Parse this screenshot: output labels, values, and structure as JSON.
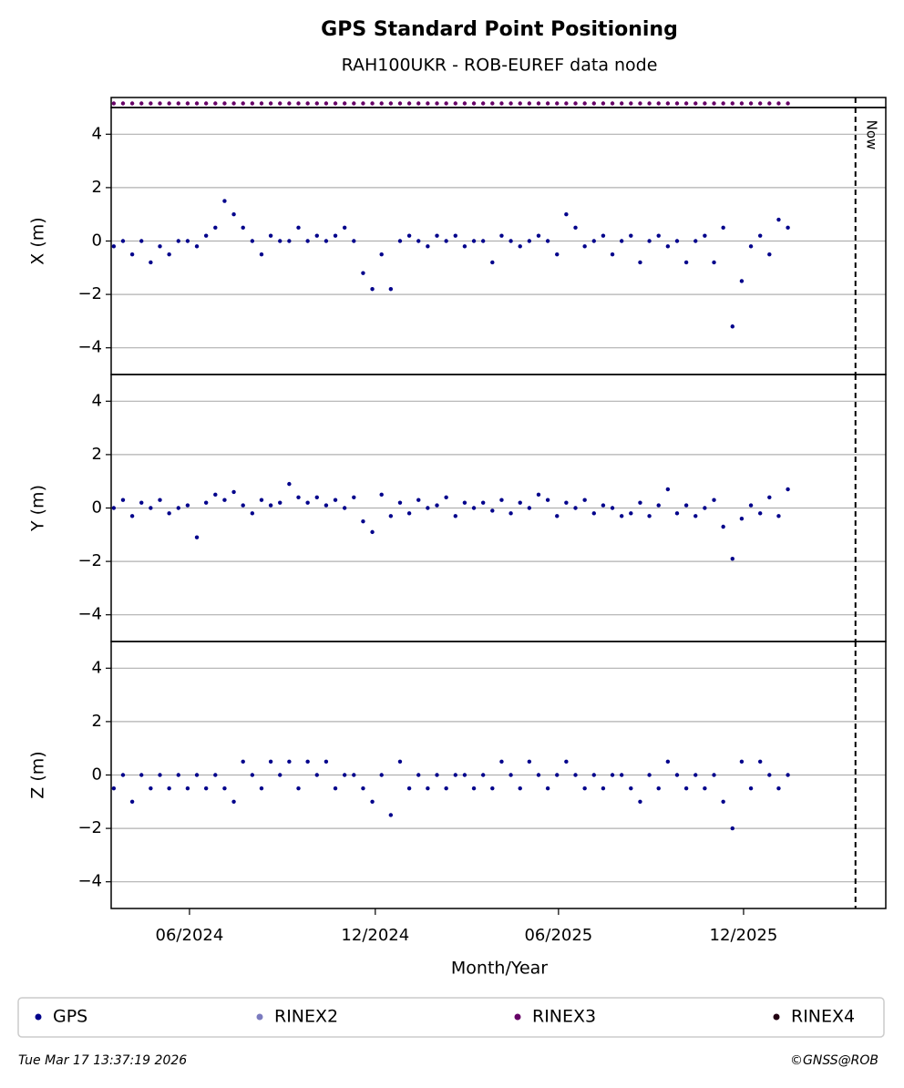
{
  "chart_data": {
    "type": "scatter",
    "title": "GPS Standard Point Positioning",
    "subtitle": "RAH100UKR - ROB-EUREF data node",
    "xlabel": "Month/Year",
    "xlim": [
      2024.203,
      2026.3
    ],
    "xticks": [
      {
        "value": 2024.415,
        "label": "06/2024"
      },
      {
        "value": 2024.918,
        "label": "12/2024"
      },
      {
        "value": 2025.414,
        "label": "06/2025"
      },
      {
        "value": 2025.915,
        "label": "12/2025"
      }
    ],
    "now": {
      "value": 2026.218,
      "label": "Now"
    },
    "grid": true,
    "x": [
      2024.21,
      2024.235,
      2024.26,
      2024.285,
      2024.31,
      2024.335,
      2024.36,
      2024.385,
      2024.41,
      2024.435,
      2024.46,
      2024.485,
      2024.51,
      2024.535,
      2024.56,
      2024.585,
      2024.61,
      2024.635,
      2024.66,
      2024.685,
      2024.71,
      2024.735,
      2024.76,
      2024.785,
      2024.81,
      2024.835,
      2024.86,
      2024.885,
      2024.91,
      2024.935,
      2024.96,
      2024.985,
      2025.01,
      2025.035,
      2025.06,
      2025.085,
      2025.11,
      2025.135,
      2025.16,
      2025.185,
      2025.21,
      2025.235,
      2025.26,
      2025.285,
      2025.31,
      2025.335,
      2025.36,
      2025.385,
      2025.41,
      2025.435,
      2025.46,
      2025.485,
      2025.51,
      2025.535,
      2025.56,
      2025.585,
      2025.61,
      2025.635,
      2025.66,
      2025.685,
      2025.71,
      2025.735,
      2025.76,
      2025.785,
      2025.81,
      2025.835,
      2025.86,
      2025.885,
      2025.91,
      2025.935,
      2025.96,
      2025.985,
      2026.01,
      2026.035
    ],
    "panels": [
      {
        "ylabel": "X (m)",
        "ylim": [
          -5,
          5
        ],
        "yticks": [
          {
            "value": -4,
            "label": "−4"
          },
          {
            "value": -2,
            "label": "−2"
          },
          0,
          2,
          4
        ],
        "values": [
          -0.2,
          0,
          -0.5,
          0,
          -0.8,
          -0.2,
          -0.5,
          0,
          0,
          -0.2,
          0.2,
          0.5,
          1.5,
          1.0,
          0.5,
          0,
          -0.5,
          0.2,
          0,
          0,
          0.5,
          0,
          0.2,
          0,
          0.2,
          0.5,
          0,
          -1.2,
          -1.8,
          -0.5,
          -1.8,
          0,
          0.2,
          0,
          -0.2,
          0.2,
          0,
          0.2,
          -0.2,
          0,
          0,
          -0.8,
          0.2,
          0,
          -0.2,
          0,
          0.2,
          0,
          -0.5,
          1.0,
          0.5,
          -0.2,
          0,
          0.2,
          -0.5,
          0,
          0.2,
          -0.8,
          0,
          0.2,
          -0.2,
          0,
          -0.8,
          0,
          0.2,
          -0.8,
          0.5,
          -3.2,
          -1.5,
          -0.2,
          0.2,
          -0.5,
          0.8,
          0.5
        ]
      },
      {
        "ylabel": "Y (m)",
        "ylim": [
          -5,
          5
        ],
        "yticks": [
          {
            "value": -4,
            "label": "−4"
          },
          {
            "value": -2,
            "label": "−2"
          },
          0,
          2,
          4
        ],
        "values": [
          0,
          0.3,
          -0.3,
          0.2,
          0,
          0.3,
          -0.2,
          0,
          0.1,
          -1.1,
          0.2,
          0.5,
          0.3,
          0.6,
          0.1,
          -0.2,
          0.3,
          0.1,
          0.2,
          0.9,
          0.4,
          0.2,
          0.4,
          0.1,
          0.3,
          0,
          0.4,
          -0.5,
          -0.9,
          0.5,
          -0.3,
          0.2,
          -0.2,
          0.3,
          0,
          0.1,
          0.4,
          -0.3,
          0.2,
          0,
          0.2,
          -0.1,
          0.3,
          -0.2,
          0.2,
          0,
          0.5,
          0.3,
          -0.3,
          0.2,
          0,
          0.3,
          -0.2,
          0.1,
          0,
          -0.3,
          -0.2,
          0.2,
          -0.3,
          0.1,
          0.7,
          -0.2,
          0.1,
          -0.3,
          0,
          0.3,
          -0.7,
          -1.9,
          -0.4,
          0.1,
          -0.2,
          0.4,
          -0.3,
          0.7
        ]
      },
      {
        "ylabel": "Z (m)",
        "ylim": [
          -5,
          5
        ],
        "yticks": [
          {
            "value": -4,
            "label": "−4"
          },
          {
            "value": -2,
            "label": "−2"
          },
          0,
          2,
          4
        ],
        "values": [
          -0.5,
          0,
          -1,
          0,
          -0.5,
          0,
          -0.5,
          0,
          -0.5,
          0,
          -0.5,
          0,
          -0.5,
          -1,
          0.5,
          0,
          -0.5,
          0.5,
          0,
          0.5,
          -0.5,
          0.5,
          0,
          0.5,
          -0.5,
          0,
          0,
          -0.5,
          -1,
          0,
          -1.5,
          0.5,
          -0.5,
          0,
          -0.5,
          0,
          -0.5,
          0,
          0,
          -0.5,
          0,
          -0.5,
          0.5,
          0,
          -0.5,
          0.5,
          0,
          -0.5,
          0,
          0.5,
          0,
          -0.5,
          0,
          -0.5,
          0,
          0,
          -0.5,
          -1,
          0,
          -0.5,
          0.5,
          0,
          -0.5,
          0,
          -0.5,
          0,
          -1,
          -2,
          0.5,
          -0.5,
          0.5,
          0,
          -0.5,
          0
        ]
      }
    ],
    "series": [
      {
        "name": "GPS",
        "color": "#00008b"
      },
      {
        "name": "RINEX2",
        "color": "#7b7bbf"
      },
      {
        "name": "RINEX3",
        "color": "#660066"
      },
      {
        "name": "RINEX4",
        "color": "#220011"
      }
    ],
    "footer_left": "Tue Mar 17 13:37:19 2026",
    "footer_right": "©GNSS@ROB"
  }
}
